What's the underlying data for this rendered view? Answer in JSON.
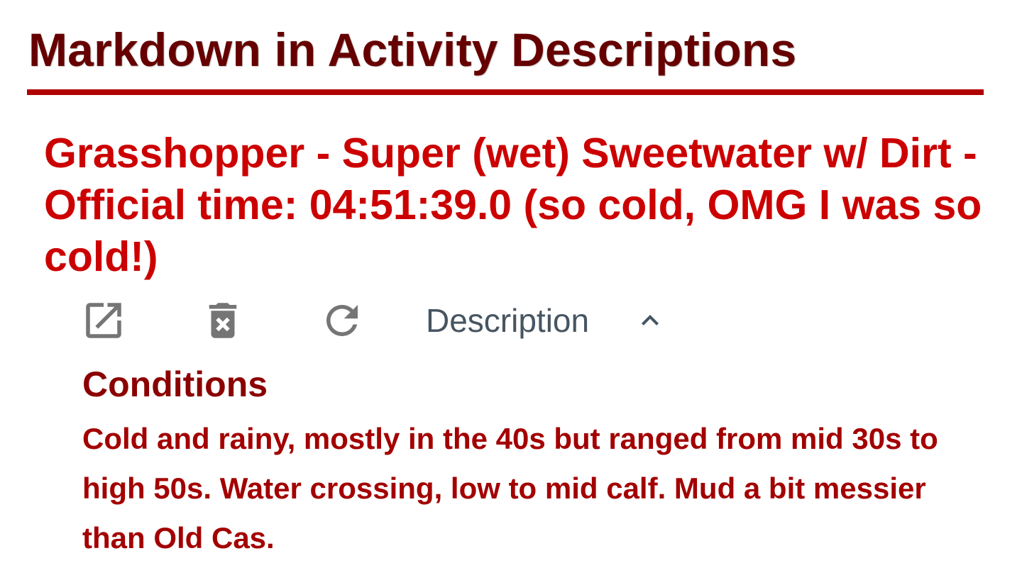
{
  "page": {
    "heading": "Markdown in Activity Descriptions"
  },
  "activity": {
    "title": "Grasshopper - Super (wet) Sweetwater w/ Dirt - Official time: 04:51:39.0 (so cold, OMG I was so cold!)"
  },
  "toolbar": {
    "open_icon": "open-in-new-icon",
    "delete_icon": "trash-icon",
    "refresh_icon": "refresh-icon",
    "description_label": "Description",
    "description_expanded": true,
    "chevron_icon": "chevron-up-icon"
  },
  "description": {
    "heading": "Conditions",
    "body": "Cold and rainy, mostly in the 40s but ranged from mid 30s to high 50s. Water crossing, low to mid calf. Mud a bit messier than Old Cas."
  },
  "colors": {
    "heading": "#660000",
    "rule": "#b00000",
    "title": "#cc0000",
    "icon": "#757575",
    "label": "#475562",
    "desc_heading": "#8b0000",
    "desc_body": "#a30000"
  }
}
